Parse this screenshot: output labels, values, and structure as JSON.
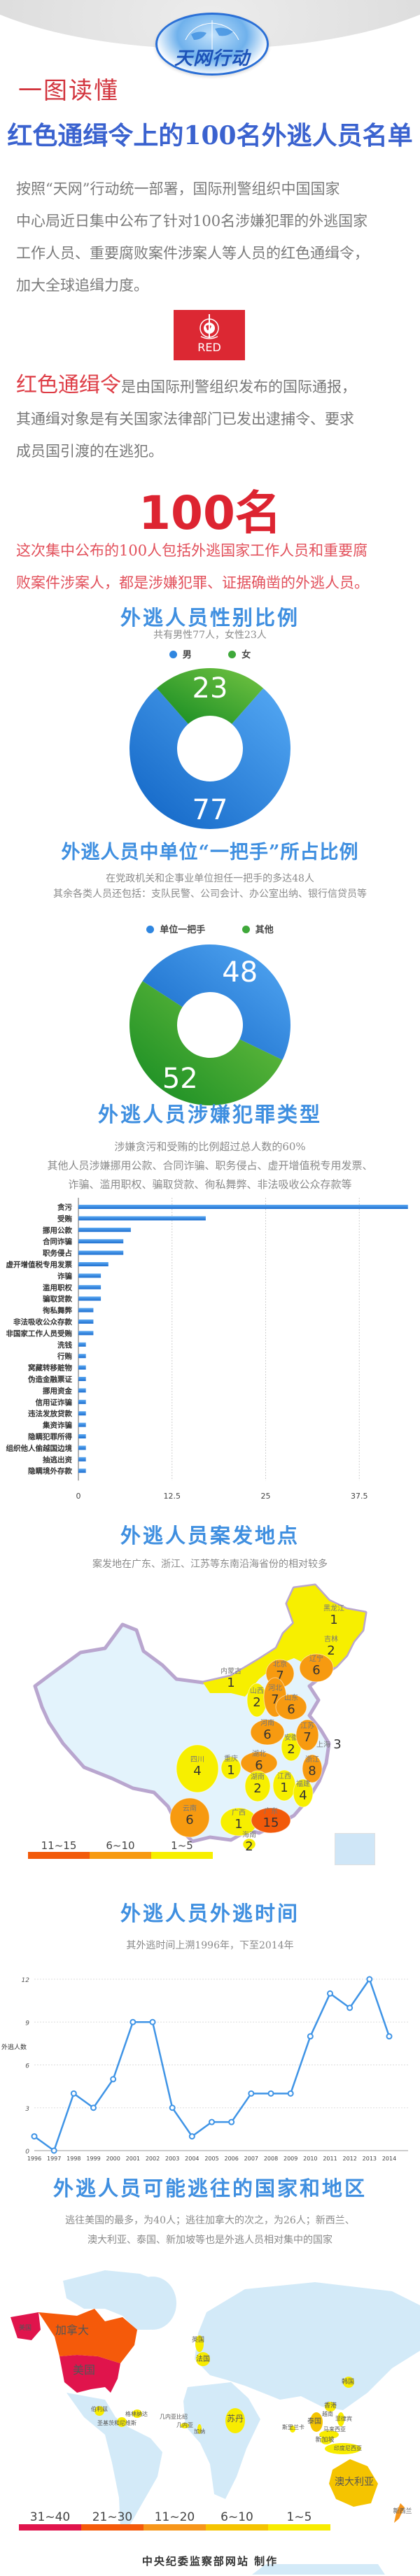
{
  "header": {
    "logo_text": "天网行动",
    "kicker": "一图读懂",
    "title": "红色通缉令上的100名外逃人员名单"
  },
  "intro": {
    "lines": [
      "按照“天网”行动统一部署，国际刑警组织中国国家",
      "中心局近日集中公布了针对100名涉嫌犯罪的外逃国家",
      "工作人员、重要腐败案件涉案人等人员的红色通缉令，",
      "加大全球追缉力度。"
    ]
  },
  "interpol_badge": {
    "label": "RED",
    "color": "#dc2833"
  },
  "red_notice": {
    "highlight": "红色通缉令",
    "line1_rest": "是由国际刑警组织发布的国际通报，",
    "line2": "其通缉对象是有关国家法律部门已发出逮捕令、要求",
    "line3": "成员国引渡的在逃犯。"
  },
  "count": {
    "big": "100名",
    "lines": [
      "这次集中公布的100人包括外逃国家工作人员和重要腐",
      "败案件涉案人，都是涉嫌犯罪、证据确凿的外逃人员。"
    ]
  },
  "colors": {
    "blue": "#3f8fe0",
    "green": "#3fa83a",
    "red": "#dd2431",
    "china_base": "#e3f3fc"
  },
  "chart_data": [
    {
      "type": "pie",
      "donut": true,
      "title": "外逃人员性别比例",
      "subtitle": "共有男性77人，女性23人",
      "categories": [
        "男",
        "女"
      ],
      "values": [
        77,
        23
      ],
      "colors": [
        "#2f86e0",
        "#3fa83a"
      ],
      "legend_placement": "top"
    },
    {
      "type": "pie",
      "donut": true,
      "title": "外逃人员中单位“一把手”所占比例",
      "subtitle": [
        "在党政机关和企事业单位担任一把手的多达48人",
        "其余各类人员还包括：支队民警、公司会计、办公室出纳、银行信贷员等"
      ],
      "categories": [
        "单位一把手",
        "其他"
      ],
      "values": [
        48,
        52
      ],
      "colors": [
        "#2f86e0",
        "#3fa83a"
      ],
      "legend_placement": "top"
    },
    {
      "type": "bar",
      "orientation": "horizontal",
      "title": "外逃人员涉嫌犯罪类型",
      "subtitle": [
        "涉嫌贪污和受贿的比例超过总人数的60%",
        "其他人员涉嫌挪用公款、合同诈骗、职务侵占、虚开增值税专用发票、",
        "诈骗、滥用职权、骗取贷款、徇私舞弊、非法吸收公众存款等"
      ],
      "categories": [
        "贪污",
        "受贿",
        "挪用公款",
        "合同诈骗",
        "职务侵占",
        "虚开增值税专用发票",
        "诈骗",
        "滥用职权",
        "骗取贷款",
        "徇私舞弊",
        "非法吸收公众存款",
        "非国家工作人员受贿",
        "洗钱",
        "行贿",
        "窝藏转移赃物",
        "伪造金融票证",
        "挪用资金",
        "信用证诈骗",
        "违法发放贷款",
        "集资诈骗",
        "隐瞒犯罪所得",
        "组织他人偷越国边境",
        "抽逃出资",
        "隐瞒境外存款"
      ],
      "values": [
        44,
        17,
        7,
        6,
        6,
        4,
        3,
        3,
        3,
        2,
        2,
        2,
        1,
        1,
        1,
        1,
        1,
        1,
        1,
        1,
        1,
        1,
        1,
        1
      ],
      "xlim": [
        0,
        44
      ],
      "xticks": [
        "0",
        "12.5",
        "25",
        "37.5"
      ],
      "xtick_values": [
        0,
        12.5,
        25,
        37.5
      ],
      "grid": true,
      "color": "#2f7fdc"
    },
    {
      "type": "heatmap",
      "kind": "choropleth-map",
      "title": "外逃人员案发地点",
      "subtitle": "案发地在广东、浙江、江苏等东南沿海省份的相对较多",
      "legend": [
        {
          "label": "11~15",
          "color": "#f25a0a"
        },
        {
          "label": "6~10",
          "color": "#f79a10"
        },
        {
          "label": "1~5",
          "color": "#f7ef00"
        }
      ],
      "regions": [
        {
          "name": "黑龙江",
          "value": 1
        },
        {
          "name": "吉林",
          "value": 2
        },
        {
          "name": "辽宁",
          "value": 6
        },
        {
          "name": "内蒙古",
          "value": 1
        },
        {
          "name": "北京",
          "value": 7
        },
        {
          "name": "山西",
          "value": 2
        },
        {
          "name": "河北",
          "value": 7
        },
        {
          "name": "山东",
          "value": 6
        },
        {
          "name": "河南",
          "value": 6
        },
        {
          "name": "安徽",
          "value": 2
        },
        {
          "name": "江苏",
          "value": 7
        },
        {
          "name": "上海",
          "value": 3
        },
        {
          "name": "湖北",
          "value": 6
        },
        {
          "name": "浙江",
          "value": 8
        },
        {
          "name": "四川",
          "value": 4
        },
        {
          "name": "重庆",
          "value": 1
        },
        {
          "name": "湖南",
          "value": 2
        },
        {
          "name": "江西",
          "value": 1
        },
        {
          "name": "福建",
          "value": 4
        },
        {
          "name": "云南",
          "value": 6
        },
        {
          "name": "广西",
          "value": 1
        },
        {
          "name": "广东",
          "value": 15
        },
        {
          "name": "海南",
          "value": 2
        }
      ]
    },
    {
      "type": "line",
      "title": "外逃人员外逃时间",
      "subtitle": "其外逃时间上溯1996年，下至2014年",
      "ylabel": "外逃人数",
      "x": [
        1996,
        1997,
        1998,
        1999,
        2000,
        2001,
        2002,
        2003,
        2004,
        2005,
        2006,
        2007,
        2008,
        2009,
        2010,
        2011,
        2012,
        2013,
        2014
      ],
      "values": [
        1,
        0,
        4,
        3,
        5,
        9,
        9,
        3,
        1,
        2,
        2,
        4,
        4,
        4,
        8,
        11,
        10,
        12,
        8
      ],
      "ylim": [
        0,
        12
      ],
      "yticks": [
        "0",
        "3",
        "6",
        "9",
        "12"
      ],
      "grid": true,
      "color": "#3f94e6"
    },
    {
      "type": "heatmap",
      "kind": "choropleth-map",
      "title": "外逃人员可能逃往的国家和地区",
      "subtitle": [
        "逃往美国的最多，为40人；逃往加拿大的次之，为26人；新西兰、",
        "澳大利亚、泰国、新加坡等也是外逃人员相对集中的国家"
      ],
      "legend": [
        {
          "label": "31~40",
          "color": "#e0144c"
        },
        {
          "label": "21~30",
          "color": "#f55a0a"
        },
        {
          "label": "11~20",
          "color": "#f7961a"
        },
        {
          "label": "6~10",
          "color": "#f5c400"
        },
        {
          "label": "1~5",
          "color": "#f8ec00"
        }
      ],
      "regions": [
        {
          "name": "美国",
          "range": "31~40",
          "value": 40
        },
        {
          "name": "加拿大",
          "range": "21~30",
          "value": 26
        },
        {
          "name": "新西兰",
          "range": "11~20"
        },
        {
          "name": "澳大利亚",
          "range": "6~10"
        },
        {
          "name": "泰国",
          "range": "6~10"
        },
        {
          "name": "英国",
          "range": "1~5"
        },
        {
          "name": "法国",
          "range": "1~5"
        },
        {
          "name": "韩国",
          "range": "1~5"
        },
        {
          "name": "香港",
          "range": "1~5"
        },
        {
          "name": "越南",
          "range": "1~5"
        },
        {
          "name": "菲律宾",
          "range": "1~5"
        },
        {
          "name": "马来西亚",
          "range": "1~5"
        },
        {
          "name": "新加坡",
          "range": "1~5"
        },
        {
          "name": "印度尼西亚",
          "range": "1~5"
        },
        {
          "name": "斯里兰卡",
          "range": "1~5"
        },
        {
          "name": "苏丹",
          "range": "1~5"
        },
        {
          "name": "几内亚比绍",
          "range": "1~5"
        },
        {
          "name": "几内亚",
          "range": "1~5"
        },
        {
          "name": "加纳",
          "range": "1~5"
        },
        {
          "name": "伯利兹",
          "range": "1~5"
        },
        {
          "name": "格林纳达",
          "range": "1~5"
        },
        {
          "name": "圣基茨和尼维斯",
          "range": "1~5"
        }
      ]
    }
  ],
  "footer": {
    "credit": "中央纪委监察部网站 制作"
  }
}
